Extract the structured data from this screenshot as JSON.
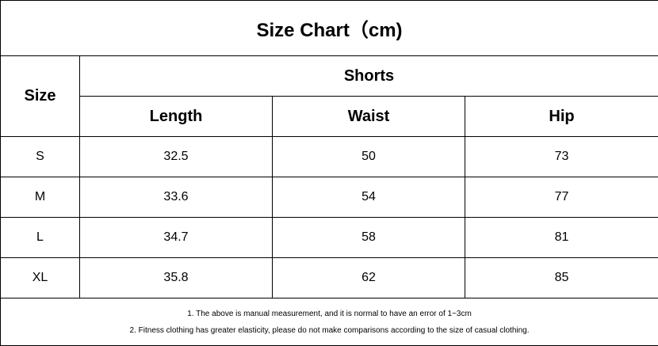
{
  "title": "Size Chart（cm)",
  "header": {
    "size_label": "Size",
    "group_label": "Shorts",
    "columns": [
      "Length",
      "Waist",
      "Hip"
    ]
  },
  "rows": [
    {
      "size": "S",
      "length": "32.5",
      "waist": "50",
      "hip": "73"
    },
    {
      "size": "M",
      "length": "33.6",
      "waist": "54",
      "hip": "77"
    },
    {
      "size": "L",
      "length": "34.7",
      "waist": "58",
      "hip": "81"
    },
    {
      "size": "XL",
      "length": "35.8",
      "waist": "62",
      "hip": "85"
    }
  ],
  "notes": [
    "1. The above is manual measurement, and it is normal to have an error of 1~3cm",
    "2. Fitness clothing has greater elasticity, please do not make comparisons according to the size of casual clothing."
  ]
}
